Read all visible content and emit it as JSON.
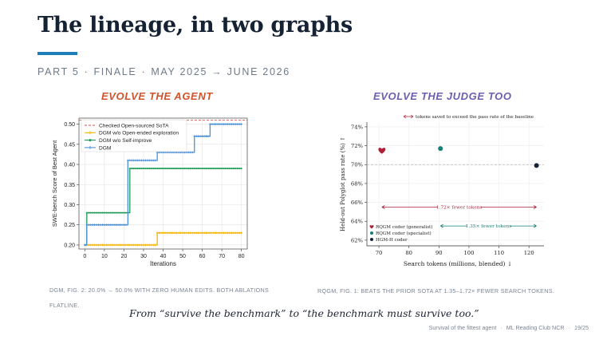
{
  "slide": {
    "title": "The lineage, in two graphs",
    "kicker": {
      "part": "PART 5",
      "section": "FINALE",
      "dates": "MAY 2025 → JUNE 2026"
    },
    "left_heading": "EVOLVE THE AGENT",
    "right_heading": "EVOLVE THE JUDGE TOO",
    "left_caption": "DGM, FIG. 2: 20.0% → 50.0% WITH ZERO HUMAN EDITS. BOTH ABLATIONS FLATLINE.",
    "right_caption": "RQGM, FIG. 1: BEATS THE PRIOR SOTA AT 1.35–1.72× FEWER SEARCH TOKENS.",
    "quote": "From “survive the benchmark” to “the benchmark must survive too.”",
    "footer": {
      "talk": "Survival of the fittest agent",
      "venue": "ML Reading Club NCR",
      "page": "19/25"
    },
    "colors": {
      "accent": "#1b7fb8",
      "left_heading": "#d0532c",
      "right_heading": "#6b5fb2"
    }
  },
  "chart_data": [
    {
      "type": "line",
      "xlabel": "Iterations",
      "ylabel": "SWE-bench Score of Best Agent",
      "xlim": [
        -3,
        83
      ],
      "ylim": [
        0.19,
        0.515
      ],
      "xticks": [
        0,
        10,
        20,
        30,
        40,
        50,
        60,
        70,
        80
      ],
      "yticks": [
        0.2,
        0.25,
        0.3,
        0.35,
        0.4,
        0.45,
        0.5
      ],
      "grid": true,
      "legend": "top-left",
      "reference_line": {
        "name": "Checked Open-sourced SoTA",
        "value": 0.51,
        "color": "#d9534f"
      },
      "series": [
        {
          "name": "DGM w/o Open-ended exploration",
          "color": "#f5b400",
          "marker": "plus",
          "steps": [
            [
              0,
              0.2
            ],
            [
              37,
              0.23
            ],
            [
              80,
              0.23
            ]
          ]
        },
        {
          "name": "DGM w/o Self-improve",
          "color": "#1a9a52",
          "marker": "dot",
          "steps": [
            [
              0,
              0.2
            ],
            [
              1,
              0.28
            ],
            [
              23,
              0.39
            ],
            [
              80,
              0.39
            ]
          ]
        },
        {
          "name": "DGM",
          "color": "#4a90d9",
          "marker": "plus",
          "steps": [
            [
              0,
              0.2
            ],
            [
              1,
              0.25
            ],
            [
              22,
              0.41
            ],
            [
              37,
              0.43
            ],
            [
              56,
              0.47
            ],
            [
              64,
              0.5
            ],
            [
              80,
              0.5
            ]
          ]
        }
      ]
    },
    {
      "type": "scatter",
      "title": "tokens saved to exceed the pass rate of the baseline",
      "xlabel": "Search tokens (millions, blended) ↓",
      "ylabel": "Held-out Polyglot pass rate (%) ↑",
      "xlim": [
        66,
        125
      ],
      "ylim": [
        61.4,
        74.5
      ],
      "xticks": [
        70,
        80,
        90,
        100,
        110,
        120
      ],
      "yticks": [
        62,
        64,
        66,
        68,
        70,
        72,
        74
      ],
      "ytick_labels": [
        "62%",
        "64%",
        "66%",
        "68%",
        "70%",
        "72%",
        "74%"
      ],
      "grid": true,
      "legend": "bottom-left",
      "baseline": 70.0,
      "points": [
        {
          "name": "RQGM coder (generalist)",
          "x": 71,
          "y": 71.5,
          "color": "#b01f35",
          "marker": "heart"
        },
        {
          "name": "RQGM coder (specialist)",
          "x": 90.5,
          "y": 71.7,
          "color": "#167f78",
          "marker": "circle"
        },
        {
          "name": "HGM-H coder",
          "x": 122.5,
          "y": 69.9,
          "color": "#172336",
          "marker": "circle"
        }
      ],
      "annotations": [
        {
          "label": "1.72× fewer tokens",
          "from": 71,
          "to": 122.5,
          "y": 65.5,
          "color": "#b01f35"
        },
        {
          "label": "1.35× fewer tokens",
          "from": 90.5,
          "to": 122.5,
          "y": 63.5,
          "color": "#167f78"
        }
      ]
    }
  ]
}
